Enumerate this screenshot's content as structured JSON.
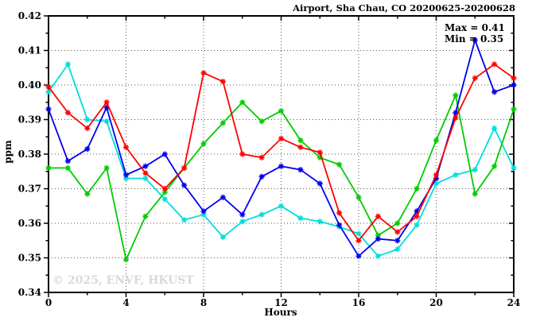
{
  "header": {
    "title": "Airport, Sha Chau, CO 20200625-20200628"
  },
  "annotation": {
    "max_label": "Max = 0.41",
    "min_label": "Min = 0.35"
  },
  "watermark": "© 2025, ENVF, HKUST",
  "chart_data": {
    "type": "line",
    "title": "Airport, Sha Chau, CO 20200625-20200628",
    "xlabel": "Hours",
    "ylabel": "ppm",
    "xlim": [
      0,
      24
    ],
    "ylim": [
      0.34,
      0.42
    ],
    "grid": "dotted",
    "grid_color": "#555555",
    "legend": "none",
    "marker": "star",
    "xticks_major": [
      0,
      4,
      8,
      12,
      16,
      20,
      24
    ],
    "xtick_labels": [
      "0",
      "4",
      "8",
      "12",
      "16",
      "20",
      "24"
    ],
    "xticks_minor": [
      2,
      6,
      10,
      14,
      18,
      22
    ],
    "grid_x": [
      4,
      8,
      12,
      16,
      20
    ],
    "yticks_major": [
      0.34,
      0.35,
      0.36,
      0.37,
      0.38,
      0.39,
      0.4,
      0.41,
      0.42
    ],
    "ytick_labels": [
      "0.34",
      "0.35",
      "0.36",
      "0.37",
      "0.38",
      "0.39",
      "0.40",
      "0.41",
      "0.42"
    ],
    "yticks_minor": [
      0.345,
      0.355,
      0.365,
      0.375,
      0.385,
      0.395,
      0.405,
      0.415
    ],
    "grid_y": [
      0.35,
      0.36,
      0.37,
      0.38,
      0.39,
      0.4,
      0.41
    ],
    "x": [
      0,
      1,
      2,
      3,
      4,
      5,
      6,
      7,
      8,
      9,
      10,
      11,
      12,
      13,
      14,
      15,
      16,
      17,
      18,
      19,
      20,
      21,
      22,
      23,
      24
    ],
    "series": [
      {
        "name": "series-cyan",
        "color": "#00dddd",
        "values": [
          0.398,
          0.406,
          0.39,
          0.3895,
          0.373,
          0.373,
          0.367,
          0.361,
          0.3625,
          0.356,
          0.3605,
          0.3625,
          0.365,
          0.3615,
          0.3605,
          0.359,
          0.357,
          0.3505,
          0.3525,
          0.3595,
          0.3715,
          0.374,
          0.3755,
          0.3875,
          0.376
        ]
      },
      {
        "name": "series-green",
        "color": "#00cc00",
        "values": [
          0.376,
          0.376,
          0.3685,
          0.376,
          0.3495,
          0.362,
          0.369,
          0.376,
          0.383,
          0.389,
          0.395,
          0.3895,
          0.3925,
          0.384,
          0.379,
          0.377,
          0.3675,
          0.3565,
          0.36,
          0.37,
          0.384,
          0.397,
          0.3685,
          0.3765,
          0.393
        ]
      },
      {
        "name": "series-blue",
        "color": "#0000ee",
        "values": [
          0.393,
          0.378,
          0.3815,
          0.3935,
          0.374,
          0.3765,
          0.38,
          0.371,
          0.3635,
          0.3675,
          0.3625,
          0.3735,
          0.3765,
          0.3755,
          0.3715,
          0.3595,
          0.3505,
          0.3555,
          0.355,
          0.3635,
          0.373,
          0.392,
          0.413,
          0.398,
          0.4
        ]
      },
      {
        "name": "series-red",
        "color": "#ff0000",
        "values": [
          0.3995,
          0.392,
          0.3875,
          0.395,
          0.382,
          0.3745,
          0.37,
          0.376,
          0.4035,
          0.401,
          0.38,
          0.379,
          0.3845,
          0.382,
          0.3805,
          0.363,
          0.355,
          0.362,
          0.3575,
          0.362,
          0.374,
          0.3905,
          0.402,
          0.406,
          0.402
        ]
      }
    ]
  }
}
